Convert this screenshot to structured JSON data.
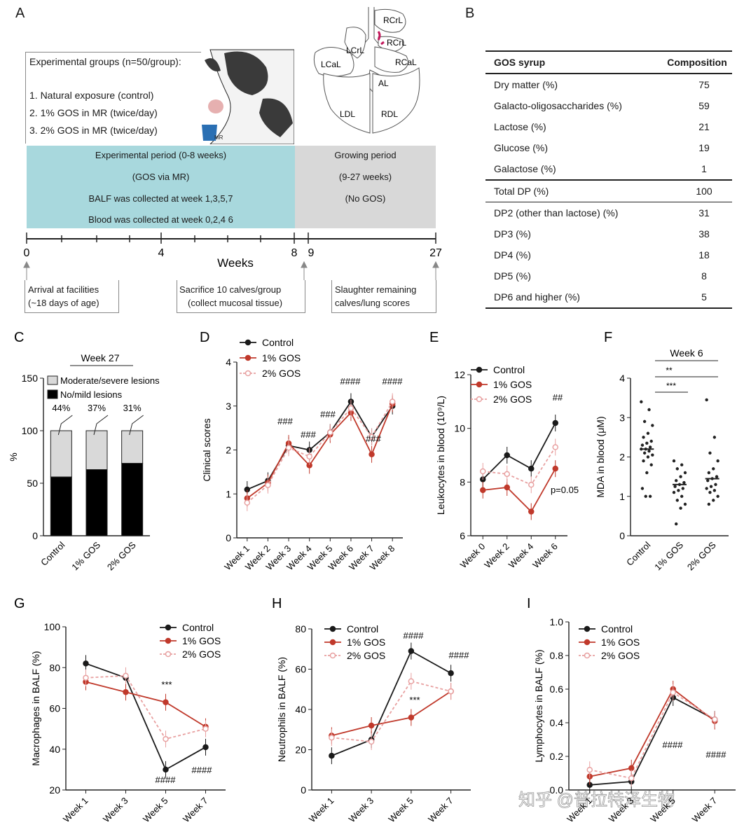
{
  "panelA": {
    "letter": "A",
    "groups_title": "Experimental groups (n=50/group):",
    "groups": [
      "1. Natural exposure (control)",
      "2. 1% GOS in MR (twice/day)",
      "3. 2% GOS in MR (twice/day)"
    ],
    "bucket_label": "MR",
    "exp_period": [
      "Experimental period (0-8 weeks)",
      "(GOS via MR)",
      "BALF was collected at week 1,3,5,7",
      "Blood was collected at week 0,2,4 6"
    ],
    "grow_period": [
      "Growing period",
      "(9-27 weeks)",
      "(No GOS)"
    ],
    "axis_ticks": [
      "0",
      "4",
      "8",
      "9",
      "27"
    ],
    "axis_label": "Weeks",
    "events": [
      [
        "Arrival at facilities",
        "(~18 days of age)"
      ],
      [
        "Sacrifice 10 calves/group",
        "(collect mucosal tissue)"
      ],
      [
        "Slaughter remaining",
        "calves/lung scores"
      ]
    ],
    "lung_labels": [
      "RCrL",
      "RCrL",
      "LCrL",
      "LCaL",
      "RCaL",
      "AL",
      "LDL",
      "RDL"
    ],
    "colors": {
      "exp_period": "#a8d8dd",
      "grow_period": "#d8d8d8",
      "lung_accent": "#c2185b"
    }
  },
  "panelB": {
    "letter": "B",
    "headers": [
      "GOS syrup",
      "Composition"
    ],
    "rows": [
      [
        "Dry matter (%)",
        "75"
      ],
      [
        "Galacto-oligosaccharides (%)",
        "59"
      ],
      [
        "Lactose (%)",
        "21"
      ],
      [
        "Glucose (%)",
        "19"
      ],
      [
        "Galactose (%)",
        "1"
      ],
      [
        "Total DP (%)",
        "100"
      ],
      [
        "DP2 (other than lactose) (%)",
        "31"
      ],
      [
        "DP3 (%)",
        "38"
      ],
      [
        "DP4 (%)",
        "18"
      ],
      [
        "DP5 (%)",
        "8"
      ],
      [
        "DP6 and higher (%)",
        "5"
      ]
    ]
  },
  "chart_data": [
    {
      "panel": "C",
      "type": "bar",
      "subtype": "stacked",
      "title": "Week 27",
      "ylabel": "%",
      "ylim": [
        0,
        150
      ],
      "yticks": [
        "0",
        "50",
        "100",
        "150"
      ],
      "categories": [
        "Control",
        "1% GOS",
        "2% GOS"
      ],
      "series": [
        {
          "name": "No/mild lesions",
          "values": [
            56,
            63,
            69
          ],
          "color": "#000000"
        },
        {
          "name": "Moderate/severe lesions",
          "values": [
            44,
            37,
            31
          ],
          "color": "#d9d9d9"
        }
      ],
      "annotations": [
        "44%",
        "37%",
        "31%"
      ],
      "legend": [
        "Moderate/severe lesions",
        "No/mild lesions"
      ]
    },
    {
      "panel": "D",
      "type": "line",
      "ylabel": "Clinical scores",
      "ylim": [
        0,
        4
      ],
      "yticks": [
        "0",
        "1",
        "2",
        "3",
        "4"
      ],
      "categories": [
        "Week 1",
        "Week 2",
        "Week 3",
        "Week 4",
        "Week 5",
        "Week 6",
        "Week 7",
        "Week 8"
      ],
      "series": [
        {
          "name": "Control",
          "values": [
            1.1,
            1.3,
            2.1,
            2.0,
            2.4,
            3.1,
            2.3,
            3.0
          ],
          "color": "#1a1a1a"
        },
        {
          "name": "1% GOS",
          "values": [
            0.9,
            1.25,
            2.15,
            1.65,
            2.35,
            2.85,
            1.9,
            3.05
          ],
          "color": "#c0392b"
        },
        {
          "name": "2% GOS",
          "values": [
            0.8,
            1.2,
            2.05,
            1.85,
            2.4,
            2.95,
            2.3,
            3.1
          ],
          "color": "#e8a0a0"
        }
      ],
      "annotations": [
        "###",
        "###",
        "###",
        "####",
        "###",
        "####"
      ],
      "legend": [
        "Control",
        "1% GOS",
        "2% GOS"
      ]
    },
    {
      "panel": "E",
      "type": "line",
      "ylabel": "Leukocytes in blood (10⁹/L)",
      "ylim": [
        6,
        12
      ],
      "yticks": [
        "6",
        "8",
        "10",
        "12"
      ],
      "categories": [
        "Week 0",
        "Week 2",
        "Week 4",
        "Week 6"
      ],
      "series": [
        {
          "name": "Control",
          "values": [
            8.1,
            9.0,
            8.5,
            10.2
          ],
          "color": "#1a1a1a"
        },
        {
          "name": "1% GOS",
          "values": [
            7.7,
            7.8,
            6.9,
            8.5
          ],
          "color": "#c0392b"
        },
        {
          "name": "2% GOS",
          "values": [
            8.4,
            8.3,
            7.9,
            9.3
          ],
          "color": "#e8a0a0"
        }
      ],
      "annotations": [
        "##",
        "p=0.05"
      ],
      "legend": [
        "Control",
        "1% GOS",
        "2% GOS"
      ]
    },
    {
      "panel": "F",
      "type": "scatter",
      "title": "Week 6",
      "ylabel": "MDA in blood (μM)",
      "ylim": [
        0,
        4
      ],
      "yticks": [
        "0",
        "1",
        "2",
        "3",
        "4"
      ],
      "categories": [
        "Control",
        "1% GOS",
        "2% GOS"
      ],
      "means": [
        2.2,
        1.3,
        1.45
      ],
      "series": [
        {
          "name": "Control",
          "values": [
            3.4,
            3.2,
            2.9,
            2.8,
            2.6,
            2.5,
            2.4,
            2.35,
            2.3,
            2.25,
            2.2,
            2.2,
            2.15,
            2.1,
            2.05,
            2.0,
            1.9,
            1.8,
            1.6,
            1.2,
            1.0,
            1.0
          ]
        },
        {
          "name": "1% GOS",
          "values": [
            1.9,
            1.8,
            1.7,
            1.6,
            1.5,
            1.4,
            1.35,
            1.3,
            1.25,
            1.2,
            1.15,
            1.1,
            1.0,
            0.9,
            0.8,
            0.7,
            0.3
          ]
        },
        {
          "name": "2% GOS",
          "values": [
            3.45,
            2.5,
            2.1,
            1.9,
            1.7,
            1.6,
            1.5,
            1.45,
            1.4,
            1.3,
            1.25,
            1.2,
            1.15,
            1.1,
            1.0,
            0.9,
            0.8
          ]
        }
      ],
      "annotations": [
        "**",
        "***"
      ]
    },
    {
      "panel": "G",
      "type": "line",
      "ylabel": "Macrophages in BALF (%)",
      "ylim": [
        20,
        100
      ],
      "yticks": [
        "20",
        "40",
        "60",
        "80",
        "100"
      ],
      "categories": [
        "Week 1",
        "Week 3",
        "Week 5",
        "Week 7"
      ],
      "series": [
        {
          "name": "Control",
          "values": [
            82,
            75,
            30,
            41
          ],
          "color": "#1a1a1a"
        },
        {
          "name": "1% GOS",
          "values": [
            73,
            68,
            63,
            51
          ],
          "color": "#c0392b"
        },
        {
          "name": "2% GOS",
          "values": [
            75,
            76,
            45,
            50
          ],
          "color": "#e8a0a0"
        }
      ],
      "annotations": [
        "***",
        "####",
        "####"
      ],
      "legend": [
        "Control",
        "1% GOS",
        "2% GOS"
      ]
    },
    {
      "panel": "H",
      "type": "line",
      "ylabel": "Neutrophils in BALF (%)",
      "ylim": [
        0,
        80
      ],
      "yticks": [
        "0",
        "20",
        "40",
        "60",
        "80"
      ],
      "categories": [
        "Week 1",
        "Week 3",
        "Week 5",
        "Week 7"
      ],
      "series": [
        {
          "name": "Control",
          "values": [
            17,
            25,
            69,
            58
          ],
          "color": "#1a1a1a"
        },
        {
          "name": "1% GOS",
          "values": [
            27,
            32,
            36,
            49
          ],
          "color": "#c0392b"
        },
        {
          "name": "2% GOS",
          "values": [
            26,
            24,
            54,
            49
          ],
          "color": "#e8a0a0"
        }
      ],
      "annotations": [
        "####",
        "***",
        "####"
      ],
      "legend": [
        "Control",
        "1% GOS",
        "2% GOS"
      ]
    },
    {
      "panel": "I",
      "type": "line",
      "ylabel": "Lymphocytes in BALF (%)",
      "ylim": [
        0,
        1.0
      ],
      "yticks": [
        "0.0",
        "0.2",
        "0.4",
        "0.6",
        "0.8",
        "1.0"
      ],
      "categories": [
        "Week 1",
        "Week 3",
        "Week 5",
        "Week 7"
      ],
      "series": [
        {
          "name": "Control",
          "values": [
            0.03,
            0.05,
            0.55,
            0.42
          ],
          "color": "#1a1a1a"
        },
        {
          "name": "1% GOS",
          "values": [
            0.08,
            0.13,
            0.6,
            0.41
          ],
          "color": "#c0392b"
        },
        {
          "name": "2% GOS",
          "values": [
            0.12,
            0.07,
            0.58,
            0.42
          ],
          "color": "#e8a0a0"
        }
      ],
      "annotations": [
        "####",
        "####"
      ],
      "legend": [
        "Control",
        "1% GOS",
        "2% GOS"
      ]
    }
  ],
  "watermark": "知乎 @普拉特泽生物"
}
